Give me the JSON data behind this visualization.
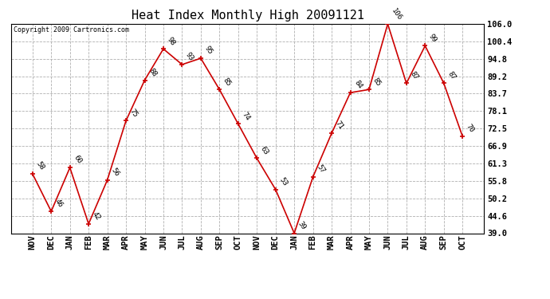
{
  "title": "Heat Index Monthly High 20091121",
  "copyright": "Copyright 2009 Cartronics.com",
  "months": [
    "NOV",
    "DEC",
    "JAN",
    "FEB",
    "MAR",
    "APR",
    "MAY",
    "JUN",
    "JUL",
    "AUG",
    "SEP",
    "OCT",
    "NOV",
    "DEC",
    "JAN",
    "FEB",
    "MAR",
    "APR",
    "MAY",
    "JUN",
    "JUL",
    "AUG",
    "SEP",
    "OCT"
  ],
  "values": [
    58,
    46,
    60,
    42,
    56,
    75,
    88,
    98,
    93,
    95,
    85,
    74,
    63,
    53,
    39,
    57,
    71,
    84,
    85,
    106,
    87,
    99,
    87,
    70
  ],
  "ylim": [
    39.0,
    106.0
  ],
  "yticks": [
    39.0,
    44.6,
    50.2,
    55.8,
    61.3,
    66.9,
    72.5,
    78.1,
    83.7,
    89.2,
    94.8,
    100.4,
    106.0
  ],
  "line_color": "#cc0000",
  "marker_color": "#cc0000",
  "bg_color": "#ffffff",
  "grid_color": "#b0b0b0",
  "title_fontsize": 11,
  "tick_fontsize": 7.5,
  "annot_fontsize": 6.5
}
